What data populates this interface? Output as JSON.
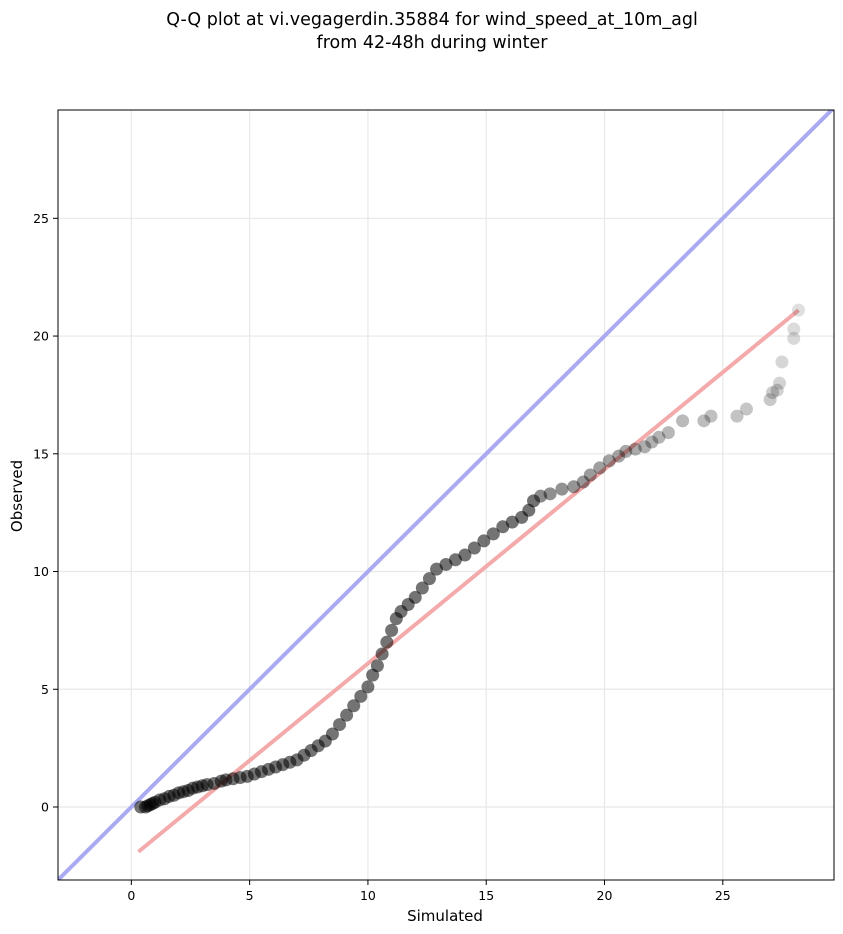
{
  "chart_data": {
    "type": "scatter",
    "title_lines": [
      "Q-Q plot at vi.vegagerdin.35884 for wind_speed_at_10m_agl",
      "from 42-48h during winter"
    ],
    "xlabel": "Simulated",
    "ylabel": "Observed",
    "xlim": [
      -3.1,
      29.7
    ],
    "ylim": [
      -3.1,
      29.6
    ],
    "xticks": [
      0,
      5,
      10,
      15,
      20,
      25
    ],
    "yticks": [
      0,
      5,
      10,
      15,
      20,
      25
    ],
    "grid": true,
    "identity_line": {
      "color": "#aaaaf2",
      "from": [
        -3.1,
        -3.1
      ],
      "to": [
        29.7,
        29.7
      ]
    },
    "fit_line": {
      "color": "#f4aaaa",
      "from": [
        0.3,
        -1.9
      ],
      "to": [
        28.2,
        21.1
      ]
    },
    "points_color": "#000000",
    "points": [
      [
        0.4,
        0.0
      ],
      [
        0.6,
        0.0
      ],
      [
        0.7,
        0.05
      ],
      [
        0.8,
        0.1
      ],
      [
        0.9,
        0.15
      ],
      [
        1.0,
        0.2
      ],
      [
        1.2,
        0.3
      ],
      [
        1.4,
        0.35
      ],
      [
        1.6,
        0.45
      ],
      [
        1.8,
        0.5
      ],
      [
        2.0,
        0.6
      ],
      [
        2.2,
        0.65
      ],
      [
        2.4,
        0.7
      ],
      [
        2.6,
        0.8
      ],
      [
        2.8,
        0.85
      ],
      [
        3.0,
        0.9
      ],
      [
        3.2,
        0.95
      ],
      [
        3.5,
        1.0
      ],
      [
        3.8,
        1.1
      ],
      [
        4.0,
        1.15
      ],
      [
        4.3,
        1.2
      ],
      [
        4.6,
        1.25
      ],
      [
        4.9,
        1.3
      ],
      [
        5.2,
        1.4
      ],
      [
        5.5,
        1.5
      ],
      [
        5.8,
        1.6
      ],
      [
        6.1,
        1.7
      ],
      [
        6.4,
        1.8
      ],
      [
        6.7,
        1.9
      ],
      [
        7.0,
        2.0
      ],
      [
        7.3,
        2.2
      ],
      [
        7.6,
        2.4
      ],
      [
        7.9,
        2.6
      ],
      [
        8.2,
        2.8
      ],
      [
        8.5,
        3.1
      ],
      [
        8.8,
        3.5
      ],
      [
        9.1,
        3.9
      ],
      [
        9.4,
        4.3
      ],
      [
        9.7,
        4.7
      ],
      [
        10.0,
        5.1
      ],
      [
        10.2,
        5.6
      ],
      [
        10.4,
        6.0
      ],
      [
        10.6,
        6.5
      ],
      [
        10.8,
        7.0
      ],
      [
        11.0,
        7.5
      ],
      [
        11.2,
        8.0
      ],
      [
        11.4,
        8.3
      ],
      [
        11.7,
        8.6
      ],
      [
        12.0,
        8.9
      ],
      [
        12.3,
        9.3
      ],
      [
        12.6,
        9.7
      ],
      [
        12.9,
        10.1
      ],
      [
        13.3,
        10.3
      ],
      [
        13.7,
        10.5
      ],
      [
        14.1,
        10.7
      ],
      [
        14.5,
        11.0
      ],
      [
        14.9,
        11.3
      ],
      [
        15.3,
        11.6
      ],
      [
        15.7,
        11.9
      ],
      [
        16.1,
        12.1
      ],
      [
        16.5,
        12.3
      ],
      [
        16.8,
        12.6
      ],
      [
        17.0,
        13.0
      ],
      [
        17.3,
        13.2
      ],
      [
        17.7,
        13.3
      ],
      [
        18.2,
        13.5
      ],
      [
        18.7,
        13.6
      ],
      [
        19.1,
        13.8
      ],
      [
        19.4,
        14.1
      ],
      [
        19.8,
        14.4
      ],
      [
        20.2,
        14.7
      ],
      [
        20.6,
        14.9
      ],
      [
        20.9,
        15.1
      ],
      [
        21.3,
        15.2
      ],
      [
        21.7,
        15.3
      ],
      [
        22.0,
        15.5
      ],
      [
        22.3,
        15.7
      ],
      [
        22.7,
        15.9
      ],
      [
        23.3,
        16.4
      ],
      [
        24.2,
        16.4
      ],
      [
        24.5,
        16.6
      ],
      [
        25.6,
        16.6
      ],
      [
        26.0,
        16.9
      ],
      [
        27.0,
        17.3
      ],
      [
        27.1,
        17.6
      ],
      [
        27.3,
        17.7
      ],
      [
        27.4,
        18.0
      ],
      [
        27.5,
        18.9
      ],
      [
        28.0,
        19.9
      ],
      [
        28.0,
        20.3
      ],
      [
        28.2,
        21.1
      ]
    ]
  }
}
